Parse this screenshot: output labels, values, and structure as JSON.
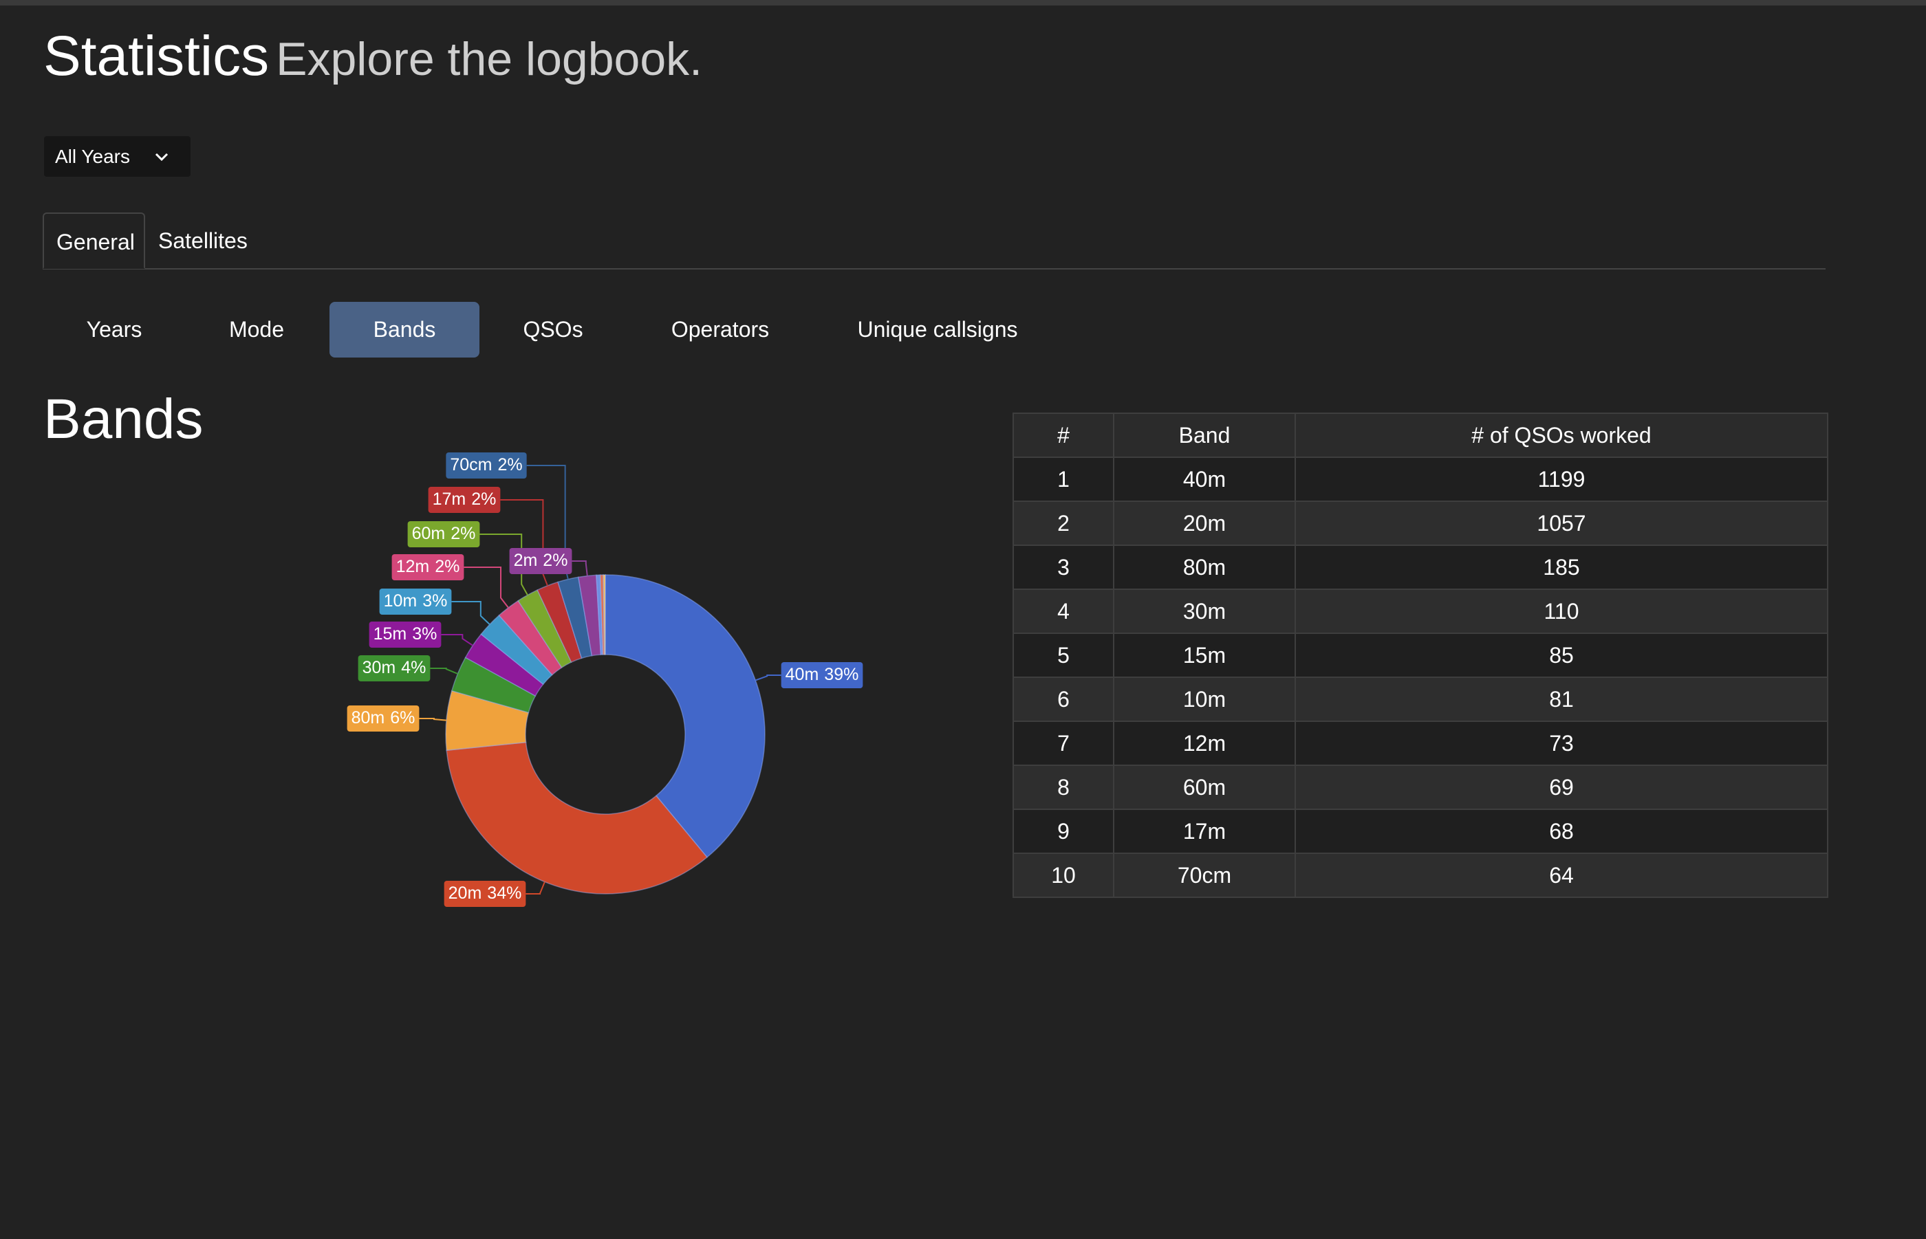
{
  "header": {
    "title": "Statistics",
    "subtitle": "Explore the logbook."
  },
  "year_select": "All Years",
  "tabs": [
    "General",
    "Satellites"
  ],
  "subtabs": [
    "Years",
    "Mode",
    "Bands",
    "QSOs",
    "Operators",
    "Unique callsigns"
  ],
  "section_title": "Bands",
  "chart_data": {
    "type": "pie",
    "donut": true,
    "categories": [
      "40m",
      "20m",
      "80m",
      "30m",
      "15m",
      "10m",
      "12m",
      "60m",
      "17m",
      "70cm",
      "2m",
      null,
      null,
      null
    ],
    "values": [
      39.0,
      34.4,
      6.0,
      3.6,
      2.8,
      2.6,
      2.4,
      2.2,
      2.2,
      2.1,
      1.8,
      0.4,
      0.3,
      0.2
    ],
    "value_labels": [
      "39%",
      "34%",
      "6%",
      "4%",
      "3%",
      "3%",
      "2%",
      "2%",
      "2%",
      "2%",
      "2%",
      null,
      null,
      null
    ],
    "colors": [
      "#4267c9",
      "#d0482a",
      "#f0a23c",
      "#3d9131",
      "#8e1a9a",
      "#3f98c9",
      "#d4477a",
      "#7ba82d",
      "#b93232",
      "#35629a",
      "#8c3f96",
      "#6f8fe0",
      "#e07050",
      "#f5c060"
    ]
  },
  "table": {
    "columns": [
      "#",
      "Band",
      "# of QSOs worked"
    ],
    "rows": [
      [
        1,
        "40m",
        1199
      ],
      [
        2,
        "20m",
        1057
      ],
      [
        3,
        "80m",
        185
      ],
      [
        4,
        "30m",
        110
      ],
      [
        5,
        "15m",
        85
      ],
      [
        6,
        "10m",
        81
      ],
      [
        7,
        "12m",
        73
      ],
      [
        8,
        "60m",
        69
      ],
      [
        9,
        "17m",
        68
      ],
      [
        10,
        "70cm",
        64
      ]
    ]
  }
}
